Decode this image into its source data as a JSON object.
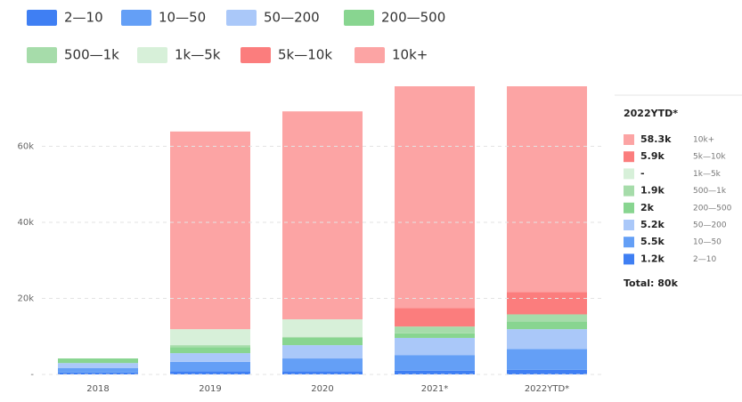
{
  "chart_data": {
    "type": "stacked_bar",
    "categories": [
      "2018",
      "2019",
      "2020",
      "2021*",
      "2022YTD*"
    ],
    "series": [
      {
        "name": "2—10",
        "color": "#3f7ff3",
        "values": [
          500,
          800,
          800,
          1000,
          1200
        ],
        "value_labels": [
          null,
          null,
          null,
          null,
          "1.2k"
        ]
      },
      {
        "name": "10—50",
        "color": "#649ff6",
        "values": [
          1200,
          2500,
          3400,
          4100,
          5500
        ],
        "value_labels": [
          null,
          null,
          null,
          null,
          "5.5k"
        ]
      },
      {
        "name": "50—200",
        "color": "#aac8f9",
        "values": [
          1300,
          2300,
          3500,
          4500,
          5200
        ],
        "value_labels": [
          null,
          null,
          null,
          null,
          "5.2k"
        ]
      },
      {
        "name": "200—500",
        "color": "#88d590",
        "values": [
          1200,
          1600,
          1900,
          1200,
          2000
        ],
        "value_labels": [
          null,
          null,
          null,
          null,
          "2k"
        ]
      },
      {
        "name": "500—1k",
        "color": "#a6dcaa",
        "values": [
          0,
          500,
          300,
          1800,
          1900
        ],
        "value_labels": [
          null,
          null,
          null,
          null,
          "1.9k"
        ]
      },
      {
        "name": "1k—5k",
        "color": "#d7f0d9",
        "values": [
          0,
          4200,
          4600,
          0,
          0
        ],
        "value_labels": [
          null,
          null,
          null,
          null,
          "-"
        ]
      },
      {
        "name": "5k—10k",
        "color": "#fb7d7d",
        "values": [
          0,
          0,
          0,
          4900,
          5900
        ],
        "value_labels": [
          null,
          null,
          null,
          null,
          "5.9k"
        ]
      },
      {
        "name": "10k+",
        "color": "#fca4a4",
        "values": [
          0,
          52000,
          54700,
          59000,
          58300
        ],
        "value_labels": [
          null,
          null,
          null,
          null,
          "58.3k"
        ]
      }
    ],
    "total": "Total: 80k",
    "ylim": [
      0,
      75800
    ],
    "yticks": [
      {
        "value": 0,
        "label": "-"
      },
      {
        "value": 20000,
        "label": "20k"
      },
      {
        "value": 40000,
        "label": "40k"
      },
      {
        "value": 60000,
        "label": "60k"
      }
    ],
    "grid": true
  }
}
